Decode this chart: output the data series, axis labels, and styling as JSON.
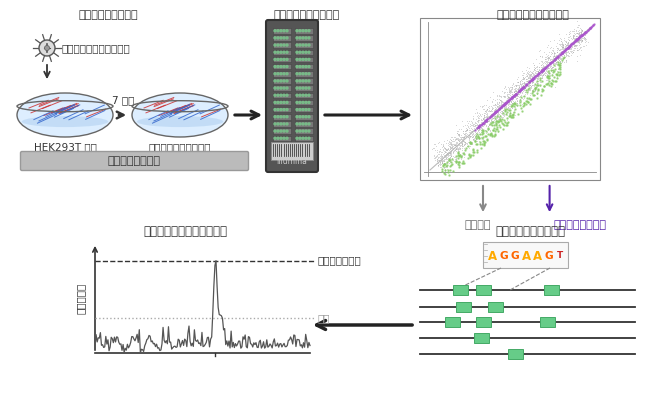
{
  "bg_color": "#ffffff",
  "title_top_left": "転写因子の強制発現",
  "title_top_mid": "メチレーションアレイ",
  "title_top_right": "メチル化変化部位の同定",
  "title_bot_left": "転写因子結合配列濃縮解析",
  "title_bot_right": "転写因子結合配列検索",
  "lentivirus_label": "レンチウイルスベクター",
  "days_label": "7 日間",
  "hek_label": "HEK293T 細胞",
  "tf_cell_label": "転写因子強制発現細胞",
  "puromycin_label": "ピューロマイシン",
  "illumina_label": "illumina",
  "random_label": "ランダム",
  "methyl_label": "メチル化変化部位",
  "max_score_label": "最大濃縮スコア",
  "threshold_label": "閾値",
  "y_axis_label": "濃縮スコア",
  "seq_label": "AGGAAGT",
  "arrow_color": "#333333",
  "purple_color": "#5522aa",
  "gray_color": "#999999",
  "green_color": "#66bb88",
  "scatter_gray": "#aaaaaa",
  "scatter_purple": "#aa66cc",
  "scatter_green": "#88cc88",
  "chip_dark": "#555555",
  "chip_slot": "#888888"
}
